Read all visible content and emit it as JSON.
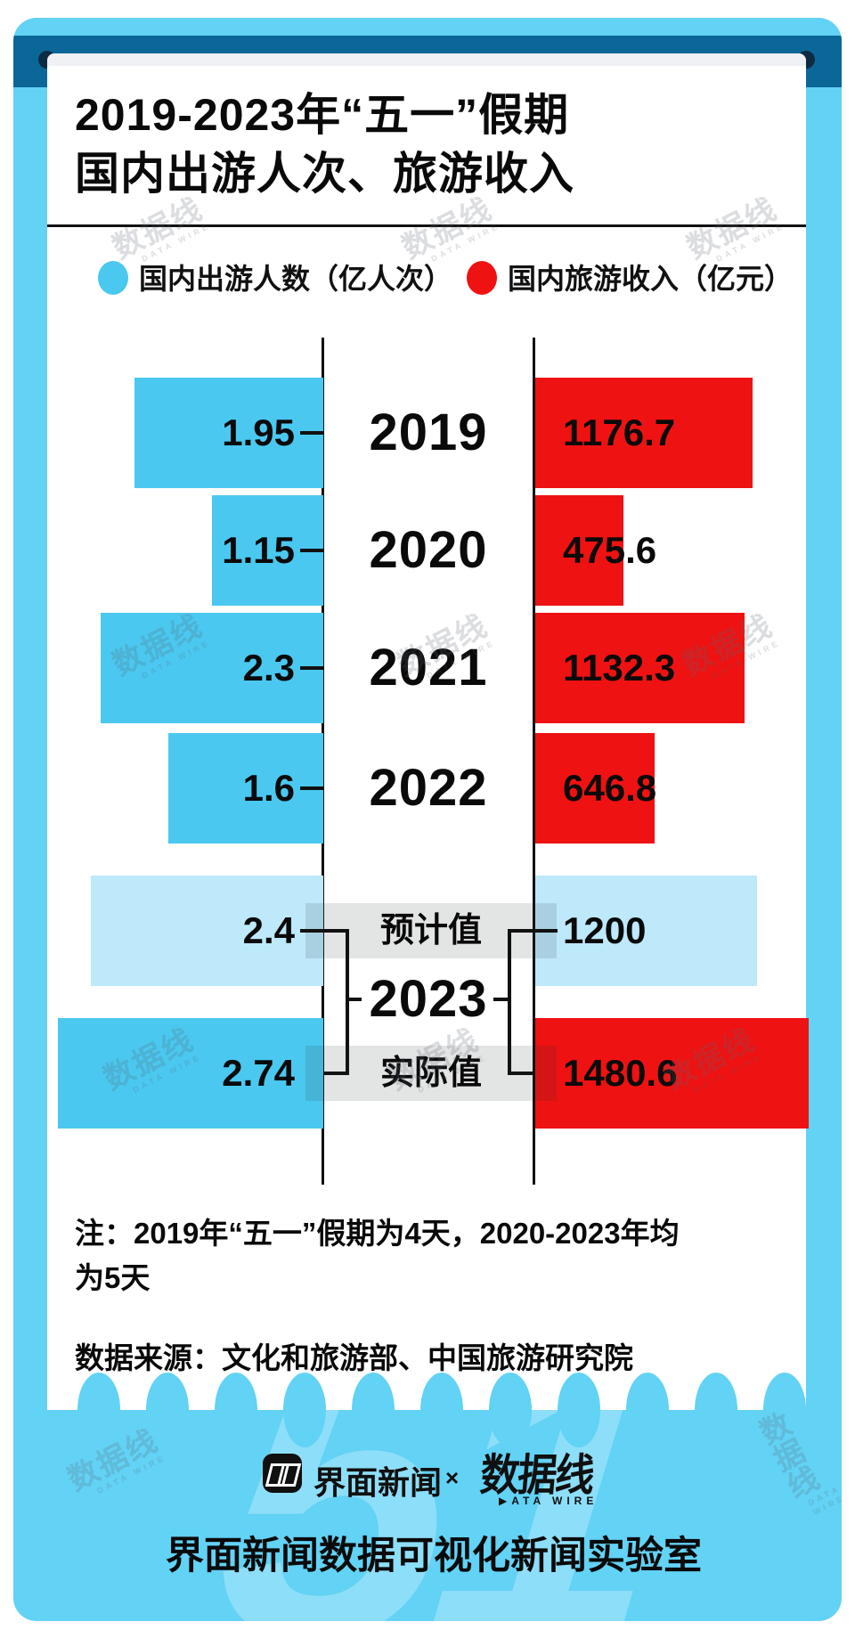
{
  "title": {
    "line1": "2019-2023年“五一”假期",
    "line2": "国内出游人次、旅游收入"
  },
  "legend": [
    {
      "label": "国内出游人数（亿人次）"
    },
    {
      "label": "国内旅游收入（亿元）"
    }
  ],
  "chart_data": {
    "type": "bar",
    "orientation": "horizontal-diverging",
    "categories": [
      "2019",
      "2020",
      "2021",
      "2022",
      "2023 预计值",
      "2023 实际值"
    ],
    "series": [
      {
        "name": "国内出游人数（亿人次）",
        "side": "left",
        "values": [
          1.95,
          1.15,
          2.3,
          1.6,
          2.4,
          2.74
        ]
      },
      {
        "name": "国内旅游收入（亿元）",
        "side": "right",
        "values": [
          1176.7,
          475.6,
          1132.3,
          646.8,
          1200,
          1480.6
        ]
      }
    ],
    "legend_position": "top",
    "grid": false
  },
  "rows": [
    {
      "year": "2019",
      "trips": 1.95,
      "revenue": 1176.7
    },
    {
      "year": "2020",
      "trips": 1.15,
      "revenue": 475.6
    },
    {
      "year": "2021",
      "trips": 2.3,
      "revenue": 1132.3
    },
    {
      "year": "2022",
      "trips": 1.6,
      "revenue": 646.8
    }
  ],
  "y2023": {
    "year": "2023",
    "est_label": "预计值",
    "act_label": "实际值",
    "est_trips": 2.4,
    "est_revenue": 1200,
    "act_trips": 2.74,
    "act_revenue": 1480.6
  },
  "note": {
    "line1": "注：2019年“五一”假期为4天，2020-2023年均",
    "line2": "为5天"
  },
  "source": "数据来源：文化和旅游部、中国旅游研究院",
  "footer": {
    "brand1": "界面新闻",
    "cross": "×",
    "brand2": "数据线",
    "brand2_sub": "▶ATA WIRE",
    "lab": "界面新闻数据可视化新闻实验室",
    "big_number": "51"
  },
  "stamp": {
    "text": "数据线",
    "sub": "DATA WIRE"
  },
  "colors": {
    "frame": "#62D2F5",
    "band": "#0B6797",
    "pin": "#0D2C44",
    "bar_cyan": "#4AC8F0",
    "bar_red": "#EE1212",
    "bar_light": "#BDE9FB",
    "axis": "#111111"
  }
}
